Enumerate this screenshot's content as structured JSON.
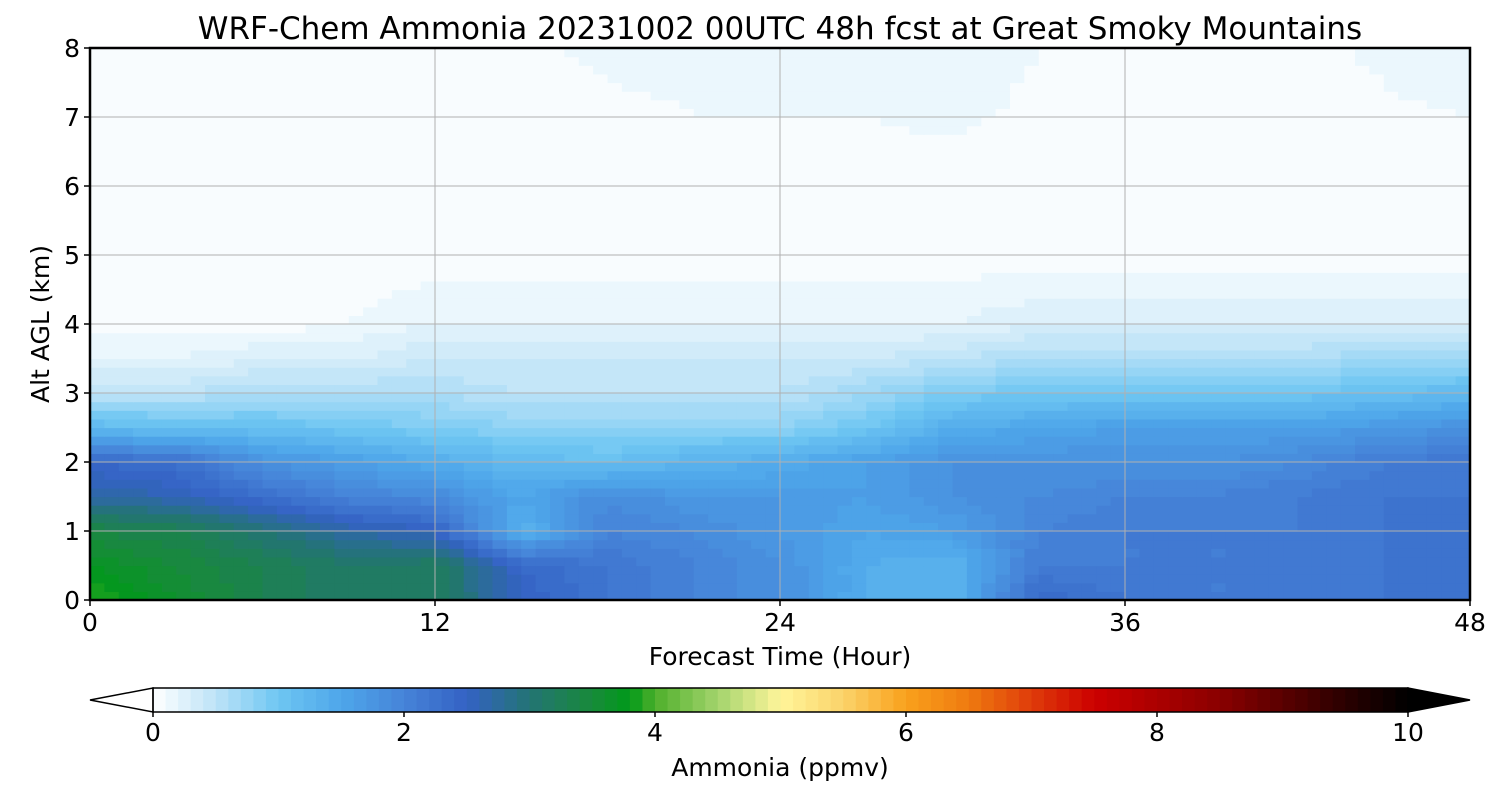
{
  "chart_data": {
    "type": "heatmap",
    "title": "WRF-Chem Ammonia  20231002 00UTC 48h fcst at Great Smoky Mountains",
    "xlabel": "Forecast Time (Hour)",
    "ylabel": "Alt AGL (km)",
    "xlim": [
      0,
      48
    ],
    "ylim": [
      0,
      8
    ],
    "x_ticks": [
      0,
      12,
      24,
      36,
      48
    ],
    "x_tick_labels": [
      "0",
      "12",
      "24",
      "36",
      "48"
    ],
    "y_ticks": [
      0,
      1,
      2,
      3,
      4,
      5,
      6,
      7,
      8
    ],
    "y_tick_labels": [
      "0",
      "1",
      "2",
      "3",
      "4",
      "5",
      "6",
      "7",
      "8"
    ],
    "grid": true,
    "x": [
      0,
      3,
      6,
      9,
      12,
      15,
      18,
      21,
      24,
      27,
      30,
      33,
      36,
      39,
      42,
      45,
      48
    ],
    "y": [
      0,
      0.5,
      1,
      1.5,
      2,
      2.5,
      3,
      3.5,
      4,
      5,
      6,
      7,
      8
    ],
    "z": [
      [
        3.9,
        3.6,
        3.3,
        3.1,
        3.2,
        2.5,
        2.2,
        2.0,
        1.8,
        1.4,
        1.3,
        2.4,
        2.2,
        2.1,
        2.1,
        2.2,
        2.3
      ],
      [
        3.7,
        3.5,
        3.3,
        3.1,
        3.2,
        2.4,
        2.2,
        2.0,
        1.8,
        1.4,
        1.3,
        2.1,
        2.1,
        2.1,
        2.1,
        2.2,
        2.3
      ],
      [
        3.4,
        3.3,
        3.0,
        2.7,
        2.5,
        1.3,
        2.0,
        1.9,
        1.7,
        1.5,
        1.6,
        2.0,
        2.1,
        2.1,
        2.1,
        2.2,
        2.3
      ],
      [
        2.7,
        2.6,
        2.3,
        2.0,
        1.9,
        1.5,
        1.9,
        1.7,
        1.7,
        1.6,
        1.8,
        1.9,
        2.0,
        2.0,
        2.1,
        2.2,
        2.2
      ],
      [
        2.4,
        2.3,
        1.8,
        1.6,
        1.4,
        1.2,
        1.1,
        1.3,
        1.4,
        1.6,
        1.8,
        1.8,
        1.8,
        1.8,
        1.9,
        2.1,
        2.2
      ],
      [
        1.2,
        1.1,
        1.1,
        1.0,
        0.9,
        0.8,
        0.8,
        0.8,
        0.8,
        1.0,
        1.4,
        1.5,
        1.6,
        1.6,
        1.6,
        1.7,
        1.8
      ],
      [
        0.5,
        0.5,
        0.6,
        0.6,
        0.6,
        0.5,
        0.5,
        0.5,
        0.5,
        0.7,
        0.9,
        1.0,
        1.0,
        1.0,
        1.0,
        1.1,
        1.2
      ],
      [
        0.2,
        0.2,
        0.3,
        0.3,
        0.4,
        0.4,
        0.4,
        0.4,
        0.4,
        0.4,
        0.5,
        0.6,
        0.6,
        0.6,
        0.6,
        0.7,
        0.7
      ],
      [
        0.05,
        0.05,
        0.05,
        0.1,
        0.2,
        0.2,
        0.2,
        0.2,
        0.2,
        0.2,
        0.2,
        0.3,
        0.3,
        0.3,
        0.3,
        0.3,
        0.3
      ],
      [
        0.02,
        0.02,
        0.02,
        0.02,
        0.03,
        0.03,
        0.03,
        0.03,
        0.04,
        0.04,
        0.04,
        0.03,
        0.03,
        0.03,
        0.03,
        0.03,
        0.03
      ],
      [
        0.02,
        0.02,
        0.02,
        0.02,
        0.02,
        0.03,
        0.03,
        0.03,
        0.04,
        0.06,
        0.05,
        0.04,
        0.03,
        0.03,
        0.03,
        0.03,
        0.03
      ],
      [
        0.02,
        0.02,
        0.02,
        0.02,
        0.02,
        0.05,
        0.08,
        0.1,
        0.1,
        0.1,
        0.12,
        0.08,
        0.05,
        0.04,
        0.05,
        0.08,
        0.1
      ],
      [
        0.02,
        0.02,
        0.02,
        0.02,
        0.02,
        0.08,
        0.12,
        0.12,
        0.12,
        0.15,
        0.15,
        0.1,
        0.06,
        0.05,
        0.07,
        0.12,
        0.18
      ]
    ],
    "colorbar": {
      "label": "Ammonia  (ppmv)",
      "min": 0,
      "max": 10,
      "step": 0.1,
      "extend": "both",
      "ticks": [
        0,
        2,
        4,
        6,
        8,
        10
      ],
      "tick_labels": [
        "0",
        "2",
        "4",
        "6",
        "8",
        "10"
      ],
      "color_stops": [
        [
          0,
          "#ffffff"
        ],
        [
          0.5,
          "#bde3f7"
        ],
        [
          1.0,
          "#6ec6f2"
        ],
        [
          1.5,
          "#4ea6ea"
        ],
        [
          2.0,
          "#4683d8"
        ],
        [
          2.5,
          "#3462c4"
        ],
        [
          3.0,
          "#237474"
        ],
        [
          3.5,
          "#188a3a"
        ],
        [
          3.8,
          "#009a1a"
        ],
        [
          4.0,
          "#4faf2b"
        ],
        [
          4.5,
          "#a3d46d"
        ],
        [
          5.0,
          "#fff59a"
        ],
        [
          5.5,
          "#fbd36a"
        ],
        [
          6.0,
          "#f9a11c"
        ],
        [
          6.5,
          "#ef7a10"
        ],
        [
          7.0,
          "#df3c0a"
        ],
        [
          7.5,
          "#cc0000"
        ],
        [
          8.5,
          "#8a0000"
        ],
        [
          9.5,
          "#2a0000"
        ],
        [
          10.0,
          "#000000"
        ]
      ]
    }
  }
}
